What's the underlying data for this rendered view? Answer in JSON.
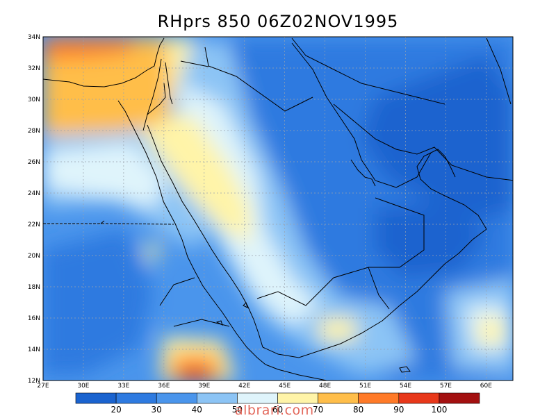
{
  "title": "RHprs 850 06Z02NOV1995",
  "map": {
    "lon_range": [
      27,
      62
    ],
    "lat_range": [
      12,
      34
    ],
    "lon_ticks": [
      "27E",
      "30E",
      "33E",
      "36E",
      "39E",
      "42E",
      "45E",
      "48E",
      "51E",
      "54E",
      "57E",
      "60E"
    ],
    "lat_ticks": [
      "12N",
      "14N",
      "16N",
      "18N",
      "20N",
      "22N",
      "24N",
      "26N",
      "28N",
      "30N",
      "32N",
      "34N"
    ],
    "colors": {
      "lt20": "#1a63cf",
      "20_30": "#2e7ae0",
      "30_40": "#4a95ec",
      "40_50": "#8cc4f5",
      "50_60": "#dff4fb",
      "60_70": "#fff4a8",
      "70_80": "#ffbe4a",
      "80_90": "#ff7a28",
      "90_100": "#e8381a",
      "gt100": "#a31010"
    }
  },
  "colorbar": {
    "labels": [
      "20",
      "30",
      "40",
      "50",
      "60",
      "70",
      "80",
      "90",
      "100"
    ],
    "colors": [
      "#1a63cf",
      "#2e7ae0",
      "#4a95ec",
      "#8cc4f5",
      "#dff4fb",
      "#fff4a8",
      "#ffbe4a",
      "#ff7a28",
      "#e8381a",
      "#a31010"
    ]
  },
  "watermark": "albrari.com"
}
